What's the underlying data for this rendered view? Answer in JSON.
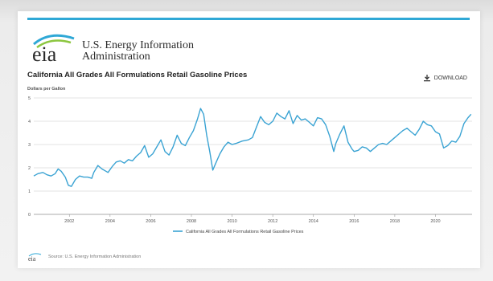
{
  "org": {
    "line1": "U.S. Energy Information",
    "line2": "Administration",
    "logo_text": "eia"
  },
  "download_label": "DOWNLOAD",
  "source_text": "Source: U.S. Energy Information Administration",
  "colors": {
    "accent": "#2fa8d6",
    "line": "#3aa3d3",
    "grid": "#e3e3e3"
  },
  "icons": {
    "download": "download-icon",
    "logo": "eia-logo"
  },
  "chart_data": {
    "type": "line",
    "title": "California All Grades All Formulations Retail Gasoline Prices",
    "ylabel": "Dollars per Gallon",
    "xlabel": "",
    "ylim": [
      0,
      5
    ],
    "xlim": [
      2000.25,
      2021.8
    ],
    "yticks": [
      0,
      1,
      2,
      3,
      4,
      5
    ],
    "xticks": [
      2002,
      2004,
      2006,
      2008,
      2010,
      2012,
      2014,
      2016,
      2018,
      2020
    ],
    "grid": true,
    "legend": "bottom-center",
    "series": [
      {
        "name": "California All Grades All Formulations Retail Gasoline Prices",
        "x": [
          2000.25,
          2000.45,
          2000.7,
          2000.9,
          2001.1,
          2001.3,
          2001.45,
          2001.6,
          2001.8,
          2001.95,
          2002.1,
          2002.3,
          2002.5,
          2002.7,
          2002.9,
          2003.1,
          2003.2,
          2003.4,
          2003.6,
          2003.8,
          2003.9,
          2004.1,
          2004.3,
          2004.5,
          2004.7,
          2004.9,
          2005.1,
          2005.3,
          2005.5,
          2005.7,
          2005.9,
          2006.1,
          2006.3,
          2006.5,
          2006.7,
          2006.9,
          2007.1,
          2007.3,
          2007.5,
          2007.7,
          2007.9,
          2008.1,
          2008.3,
          2008.45,
          2008.6,
          2008.75,
          2008.9,
          2009.05,
          2009.2,
          2009.4,
          2009.6,
          2009.8,
          2010.0,
          2010.2,
          2010.5,
          2010.8,
          2011.0,
          2011.2,
          2011.4,
          2011.6,
          2011.8,
          2012.0,
          2012.2,
          2012.4,
          2012.6,
          2012.8,
          2013.0,
          2013.2,
          2013.4,
          2013.6,
          2013.8,
          2014.0,
          2014.2,
          2014.4,
          2014.6,
          2014.8,
          2015.0,
          2015.1,
          2015.3,
          2015.5,
          2015.7,
          2015.9,
          2016.0,
          2016.2,
          2016.4,
          2016.6,
          2016.8,
          2017.0,
          2017.2,
          2017.4,
          2017.6,
          2017.8,
          2018.0,
          2018.2,
          2018.4,
          2018.6,
          2018.8,
          2019.0,
          2019.2,
          2019.4,
          2019.6,
          2019.8,
          2020.0,
          2020.2,
          2020.4,
          2020.6,
          2020.8,
          2021.0,
          2021.2,
          2021.4,
          2021.6,
          2021.75
        ],
        "values": [
          1.65,
          1.75,
          1.8,
          1.7,
          1.65,
          1.75,
          1.95,
          1.85,
          1.6,
          1.25,
          1.2,
          1.5,
          1.65,
          1.6,
          1.6,
          1.55,
          1.8,
          2.1,
          1.95,
          1.85,
          1.8,
          2.05,
          2.25,
          2.3,
          2.2,
          2.35,
          2.3,
          2.5,
          2.65,
          2.95,
          2.45,
          2.6,
          2.9,
          3.2,
          2.7,
          2.55,
          2.9,
          3.4,
          3.05,
          2.95,
          3.3,
          3.6,
          4.1,
          4.55,
          4.3,
          3.4,
          2.7,
          1.9,
          2.2,
          2.6,
          2.9,
          3.1,
          3.0,
          3.05,
          3.15,
          3.2,
          3.3,
          3.75,
          4.2,
          3.95,
          3.85,
          4.0,
          4.35,
          4.2,
          4.1,
          4.45,
          3.9,
          4.25,
          4.05,
          4.1,
          3.95,
          3.8,
          4.15,
          4.1,
          3.85,
          3.35,
          2.7,
          3.05,
          3.45,
          3.8,
          3.1,
          2.8,
          2.7,
          2.75,
          2.9,
          2.85,
          2.7,
          2.85,
          3.0,
          3.05,
          3.0,
          3.15,
          3.3,
          3.45,
          3.6,
          3.7,
          3.55,
          3.4,
          3.65,
          4.0,
          3.85,
          3.8,
          3.55,
          3.45,
          2.85,
          2.95,
          3.15,
          3.1,
          3.35,
          3.9,
          4.15,
          4.3
        ]
      }
    ]
  }
}
